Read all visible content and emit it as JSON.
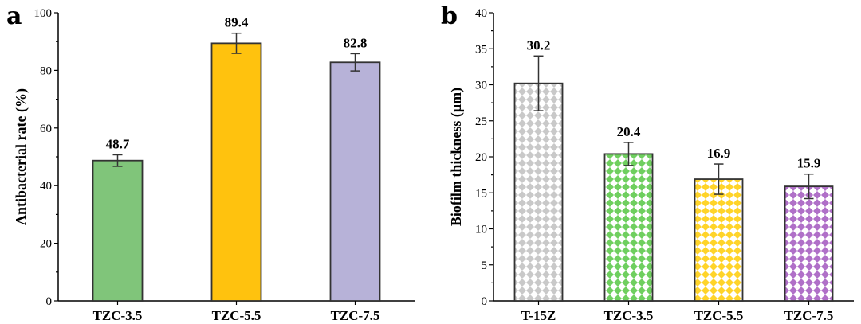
{
  "chart_data": [
    {
      "type": "bar",
      "panel": "a",
      "categories": [
        "TZC-3.5",
        "TZC-5.5",
        "TZC-7.5"
      ],
      "values": [
        48.7,
        89.4,
        82.8
      ],
      "errors": [
        2.0,
        3.5,
        3.0
      ],
      "value_labels": [
        "48.7",
        "89.4",
        "82.8"
      ],
      "colors": [
        "#80c57a",
        "#ffc20e",
        "#b7b2d8"
      ],
      "pattern": "solid",
      "xlabel": "",
      "ylabel": "Antibacterial rate (%)",
      "ylim": [
        0,
        100
      ],
      "yticks": [
        0,
        20,
        40,
        60,
        80,
        100
      ],
      "grid": false,
      "legend": "none"
    },
    {
      "type": "bar",
      "panel": "b",
      "categories": [
        "T-15Z",
        "TZC-3.5",
        "TZC-5.5",
        "TZC-7.5"
      ],
      "values": [
        30.2,
        20.4,
        16.9,
        15.9
      ],
      "errors": [
        3.8,
        1.6,
        2.1,
        1.7
      ],
      "value_labels": [
        "30.2",
        "20.4",
        "16.9",
        "15.9"
      ],
      "colors": [
        "#c9c9c9",
        "#6fcf5f",
        "#ffd42a",
        "#b070c8"
      ],
      "pattern": "checkerboard",
      "xlabel": "",
      "ylabel": "Biofilm thickness (μm)",
      "ylim": [
        0,
        40
      ],
      "yticks": [
        0,
        5,
        10,
        15,
        20,
        25,
        30,
        35,
        40
      ],
      "grid": false,
      "legend": "none"
    }
  ]
}
